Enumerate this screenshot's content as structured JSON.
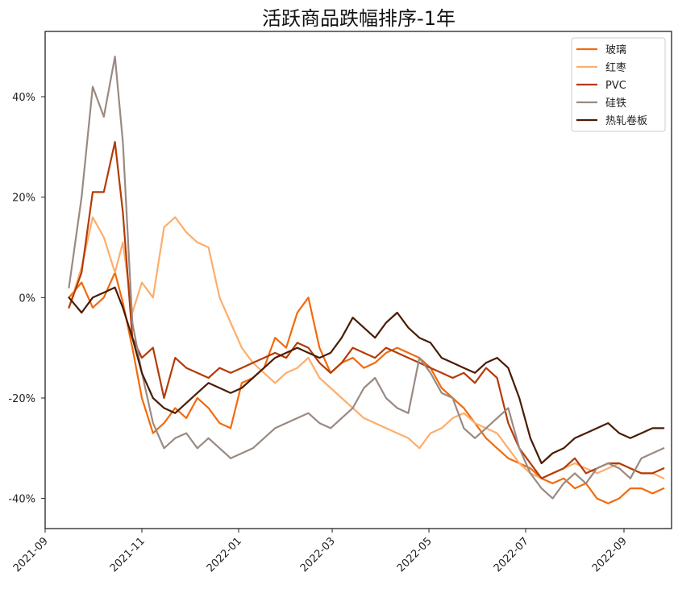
{
  "chart_data": {
    "type": "line",
    "title": "活跃商品跌幅排序-1年",
    "xlabel": "",
    "ylabel": "",
    "ylim": [
      -46,
      53
    ],
    "x_ticks": [
      "2021-09",
      "2021-11",
      "2022-01",
      "2022-03",
      "2022-05",
      "2022-07",
      "2022-09"
    ],
    "y_ticks": [
      {
        "value": 40,
        "label": "40%"
      },
      {
        "value": 20,
        "label": "20%"
      },
      {
        "value": 0,
        "label": "0%"
      },
      {
        "value": -20,
        "label": "-20%"
      },
      {
        "value": -40,
        "label": "-40%"
      }
    ],
    "legend_position": "top-right",
    "x_start": "2021-09-01",
    "x_end": "2022-10-01",
    "series": [
      {
        "name": "玻璃",
        "color": "#f26a0c",
        "x": [
          "2021-09-16",
          "2021-09-24",
          "2021-10-01",
          "2021-10-08",
          "2021-10-15",
          "2021-10-20",
          "2021-10-26",
          "2021-11-01",
          "2021-11-08",
          "2021-11-15",
          "2021-11-22",
          "2021-11-29",
          "2021-12-06",
          "2021-12-13",
          "2021-12-20",
          "2021-12-27",
          "2022-01-03",
          "2022-01-10",
          "2022-01-17",
          "2022-01-24",
          "2022-01-31",
          "2022-02-07",
          "2022-02-14",
          "2022-02-21",
          "2022-02-28",
          "2022-03-07",
          "2022-03-14",
          "2022-03-21",
          "2022-03-28",
          "2022-04-04",
          "2022-04-11",
          "2022-04-18",
          "2022-04-25",
          "2022-05-02",
          "2022-05-09",
          "2022-05-16",
          "2022-05-23",
          "2022-05-30",
          "2022-06-06",
          "2022-06-13",
          "2022-06-20",
          "2022-06-27",
          "2022-07-04",
          "2022-07-11",
          "2022-07-18",
          "2022-07-25",
          "2022-08-01",
          "2022-08-08",
          "2022-08-15",
          "2022-08-22",
          "2022-08-29",
          "2022-09-05",
          "2022-09-12",
          "2022-09-19",
          "2022-09-26"
        ],
        "values": [
          0,
          3,
          -2,
          0,
          5,
          -1,
          -10,
          -20,
          -27,
          -25,
          -22,
          -24,
          -20,
          -22,
          -25,
          -26,
          -17,
          -16,
          -14,
          -8,
          -10,
          -3,
          0,
          -10,
          -15,
          -13,
          -12,
          -14,
          -13,
          -11,
          -10,
          -11,
          -12,
          -14,
          -18,
          -20,
          -22,
          -25,
          -28,
          -30,
          -32,
          -33,
          -34,
          -36,
          -37,
          -36,
          -38,
          -37,
          -40,
          -41,
          -40,
          -38,
          -38,
          -39,
          -38
        ]
      },
      {
        "name": "红枣",
        "color": "#fdae6b",
        "x": [
          "2021-09-16",
          "2021-09-24",
          "2021-10-01",
          "2021-10-08",
          "2021-10-15",
          "2021-10-20",
          "2021-10-26",
          "2021-11-01",
          "2021-11-08",
          "2021-11-15",
          "2021-11-22",
          "2021-11-29",
          "2021-12-06",
          "2021-12-13",
          "2021-12-20",
          "2021-12-27",
          "2022-01-03",
          "2022-01-10",
          "2022-01-17",
          "2022-01-24",
          "2022-01-31",
          "2022-02-07",
          "2022-02-14",
          "2022-02-21",
          "2022-02-28",
          "2022-03-07",
          "2022-03-14",
          "2022-03-21",
          "2022-03-28",
          "2022-04-04",
          "2022-04-11",
          "2022-04-18",
          "2022-04-25",
          "2022-05-02",
          "2022-05-09",
          "2022-05-16",
          "2022-05-23",
          "2022-05-30",
          "2022-06-06",
          "2022-06-13",
          "2022-06-20",
          "2022-06-27",
          "2022-07-04",
          "2022-07-11",
          "2022-07-18",
          "2022-07-25",
          "2022-08-01",
          "2022-08-08",
          "2022-08-15",
          "2022-08-22",
          "2022-08-29",
          "2022-09-05",
          "2022-09-12",
          "2022-09-19",
          "2022-09-26"
        ],
        "values": [
          -2,
          6,
          16,
          12,
          5,
          11,
          -3,
          3,
          0,
          14,
          16,
          13,
          11,
          10,
          0,
          -5,
          -10,
          -13,
          -15,
          -17,
          -15,
          -14,
          -12,
          -16,
          -18,
          -20,
          -22,
          -24,
          -25,
          -26,
          -27,
          -28,
          -30,
          -27,
          -26,
          -24,
          -23,
          -25,
          -26,
          -27,
          -30,
          -33,
          -35,
          -36,
          -35,
          -34,
          -33,
          -34,
          -35,
          -34,
          -33,
          -34,
          -35,
          -35,
          -36
        ]
      },
      {
        "name": "PVC",
        "color": "#b43b07",
        "x": [
          "2021-09-16",
          "2021-09-24",
          "2021-10-01",
          "2021-10-08",
          "2021-10-15",
          "2021-10-20",
          "2021-10-26",
          "2021-11-01",
          "2021-11-08",
          "2021-11-15",
          "2021-11-22",
          "2021-11-29",
          "2021-12-06",
          "2021-12-13",
          "2021-12-20",
          "2021-12-27",
          "2022-01-03",
          "2022-01-10",
          "2022-01-17",
          "2022-01-24",
          "2022-01-31",
          "2022-02-07",
          "2022-02-14",
          "2022-02-21",
          "2022-02-28",
          "2022-03-07",
          "2022-03-14",
          "2022-03-21",
          "2022-03-28",
          "2022-04-04",
          "2022-04-11",
          "2022-04-18",
          "2022-04-25",
          "2022-05-02",
          "2022-05-09",
          "2022-05-16",
          "2022-05-23",
          "2022-05-30",
          "2022-06-06",
          "2022-06-13",
          "2022-06-20",
          "2022-06-27",
          "2022-07-04",
          "2022-07-11",
          "2022-07-18",
          "2022-07-25",
          "2022-08-01",
          "2022-08-08",
          "2022-08-15",
          "2022-08-22",
          "2022-08-29",
          "2022-09-05",
          "2022-09-12",
          "2022-09-19",
          "2022-09-26"
        ],
        "values": [
          -2,
          5,
          21,
          21,
          31,
          17,
          -8,
          -12,
          -10,
          -20,
          -12,
          -14,
          -15,
          -16,
          -14,
          -15,
          -14,
          -13,
          -12,
          -11,
          -12,
          -9,
          -10,
          -13,
          -15,
          -13,
          -10,
          -11,
          -12,
          -10,
          -11,
          -12,
          -13,
          -14,
          -15,
          -16,
          -15,
          -17,
          -14,
          -16,
          -25,
          -30,
          -33,
          -36,
          -35,
          -34,
          -32,
          -35,
          -34,
          -33,
          -33,
          -34,
          -35,
          -35,
          -34
        ]
      },
      {
        "name": "硅铁",
        "color": "#9a8a82",
        "x": [
          "2021-09-16",
          "2021-09-24",
          "2021-10-01",
          "2021-10-08",
          "2021-10-15",
          "2021-10-20",
          "2021-10-26",
          "2021-11-01",
          "2021-11-08",
          "2021-11-15",
          "2021-11-22",
          "2021-11-29",
          "2021-12-06",
          "2021-12-13",
          "2021-12-20",
          "2021-12-27",
          "2022-01-03",
          "2022-01-10",
          "2022-01-17",
          "2022-01-24",
          "2022-01-31",
          "2022-02-07",
          "2022-02-14",
          "2022-02-21",
          "2022-02-28",
          "2022-03-07",
          "2022-03-14",
          "2022-03-21",
          "2022-03-28",
          "2022-04-04",
          "2022-04-11",
          "2022-04-18",
          "2022-04-25",
          "2022-05-02",
          "2022-05-09",
          "2022-05-16",
          "2022-05-23",
          "2022-05-30",
          "2022-06-06",
          "2022-06-13",
          "2022-06-20",
          "2022-06-27",
          "2022-07-04",
          "2022-07-11",
          "2022-07-18",
          "2022-07-25",
          "2022-08-01",
          "2022-08-08",
          "2022-08-15",
          "2022-08-22",
          "2022-08-29",
          "2022-09-05",
          "2022-09-12",
          "2022-09-19",
          "2022-09-26"
        ],
        "values": [
          2,
          20,
          42,
          36,
          48,
          31,
          -5,
          -15,
          -25,
          -30,
          -28,
          -27,
          -30,
          -28,
          -30,
          -32,
          -31,
          -30,
          -28,
          -26,
          -25,
          -24,
          -23,
          -25,
          -26,
          -24,
          -22,
          -18,
          -16,
          -20,
          -22,
          -23,
          -12,
          -15,
          -19,
          -20,
          -26,
          -28,
          -26,
          -24,
          -22,
          -30,
          -35,
          -38,
          -40,
          -37,
          -35,
          -37,
          -34,
          -33,
          -34,
          -36,
          -32,
          -31,
          -30
        ]
      },
      {
        "name": "热轧卷板",
        "color": "#4a1c03",
        "x": [
          "2021-09-16",
          "2021-09-24",
          "2021-10-01",
          "2021-10-08",
          "2021-10-15",
          "2021-10-20",
          "2021-10-26",
          "2021-11-01",
          "2021-11-08",
          "2021-11-15",
          "2021-11-22",
          "2021-11-29",
          "2021-12-06",
          "2021-12-13",
          "2021-12-20",
          "2021-12-27",
          "2022-01-03",
          "2022-01-10",
          "2022-01-17",
          "2022-01-24",
          "2022-01-31",
          "2022-02-07",
          "2022-02-14",
          "2022-02-21",
          "2022-02-28",
          "2022-03-07",
          "2022-03-14",
          "2022-03-21",
          "2022-03-28",
          "2022-04-04",
          "2022-04-11",
          "2022-04-18",
          "2022-04-25",
          "2022-05-02",
          "2022-05-09",
          "2022-05-16",
          "2022-05-23",
          "2022-05-30",
          "2022-06-06",
          "2022-06-13",
          "2022-06-20",
          "2022-06-27",
          "2022-07-04",
          "2022-07-11",
          "2022-07-18",
          "2022-07-25",
          "2022-08-01",
          "2022-08-08",
          "2022-08-15",
          "2022-08-22",
          "2022-08-29",
          "2022-09-05",
          "2022-09-12",
          "2022-09-19",
          "2022-09-26"
        ],
        "values": [
          0,
          -3,
          0,
          1,
          2,
          -2,
          -8,
          -15,
          -20,
          -22,
          -23,
          -21,
          -19,
          -17,
          -18,
          -19,
          -18,
          -16,
          -14,
          -12,
          -11,
          -10,
          -11,
          -12,
          -11,
          -8,
          -4,
          -6,
          -8,
          -5,
          -3,
          -6,
          -8,
          -9,
          -12,
          -13,
          -14,
          -15,
          -13,
          -12,
          -14,
          -20,
          -28,
          -33,
          -31,
          -30,
          -28,
          -27,
          -26,
          -25,
          -27,
          -28,
          -27,
          -26,
          -26
        ]
      }
    ]
  }
}
